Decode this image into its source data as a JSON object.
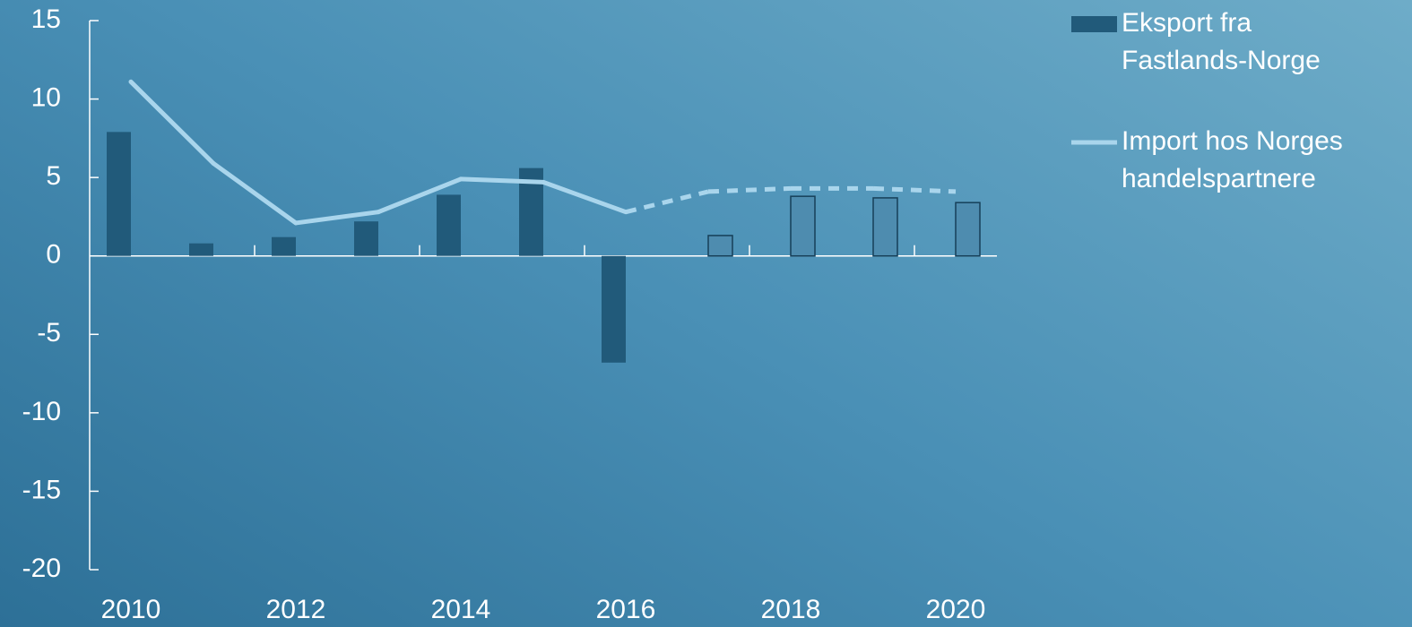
{
  "chart_data": {
    "type": "bar_line",
    "categories": [
      "2010",
      null,
      "2012",
      null,
      "2014",
      null,
      "2016",
      null,
      "2018",
      null,
      "2020"
    ],
    "series": [
      {
        "name": "Eksport fra Fastlands-Norge",
        "kind": "bar",
        "color": "#215a7a",
        "values": [
          7.9,
          0.8,
          1.2,
          2.2,
          3.9,
          5.6,
          -6.8,
          null,
          null,
          null,
          null
        ]
      },
      {
        "kind": "bar",
        "color": "#4e8caf",
        "stroke": "#163f58",
        "values": [
          null,
          null,
          null,
          null,
          null,
          null,
          null,
          1.3,
          3.8,
          3.7,
          3.4
        ]
      },
      {
        "name": "Import hos Norges handelspartnere",
        "kind": "line",
        "color": "#a9d5ec",
        "values": [
          11.1,
          5.9,
          2.1,
          2.8,
          4.9,
          4.7,
          2.8,
          4.1,
          4.3,
          4.3,
          4.1
        ],
        "dashed": [
          false,
          false,
          false,
          false,
          false,
          false,
          false,
          true,
          true,
          true,
          true
        ]
      }
    ],
    "ylim": [
      -20,
      15
    ],
    "yticks": [
      -20,
      -15,
      -10,
      -5,
      0,
      5,
      10,
      15
    ],
    "legend": "right"
  }
}
